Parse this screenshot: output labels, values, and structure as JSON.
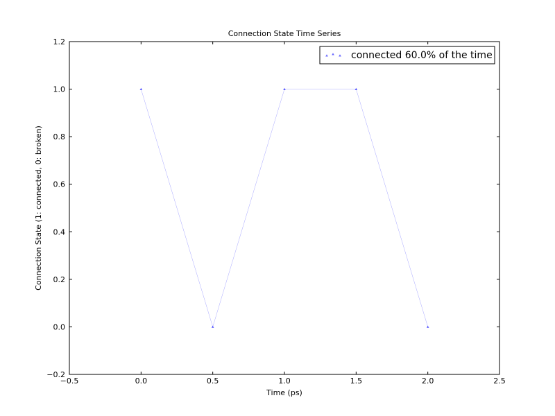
{
  "chart_data": {
    "type": "line",
    "title": "Connection State Time Series",
    "xlabel": "Time (ps)",
    "ylabel": "Connection State (1: connected, 0: broken)",
    "xlim": [
      -0.5,
      2.5
    ],
    "ylim": [
      -0.2,
      1.2
    ],
    "x_ticks": [
      -0.5,
      0.0,
      0.5,
      1.0,
      1.5,
      2.0,
      2.5
    ],
    "x_tick_labels": [
      "−0.5",
      "0.0",
      "0.5",
      "1.0",
      "1.5",
      "2.0",
      "2.5"
    ],
    "y_ticks": [
      -0.2,
      0.0,
      0.2,
      0.4,
      0.6,
      0.8,
      1.0,
      1.2
    ],
    "y_tick_labels": [
      "−0.2",
      "0.0",
      "0.2",
      "0.4",
      "0.6",
      "0.8",
      "1.0",
      "1.2"
    ],
    "grid": false,
    "legend_position": "top-right",
    "series": [
      {
        "name": "connected 60.0% of the time",
        "color": "#0000ff",
        "marker": "triangle-up",
        "x": [
          0.0,
          0.5,
          1.0,
          1.5,
          2.0
        ],
        "y": [
          1,
          0,
          1,
          1,
          0
        ]
      }
    ]
  }
}
